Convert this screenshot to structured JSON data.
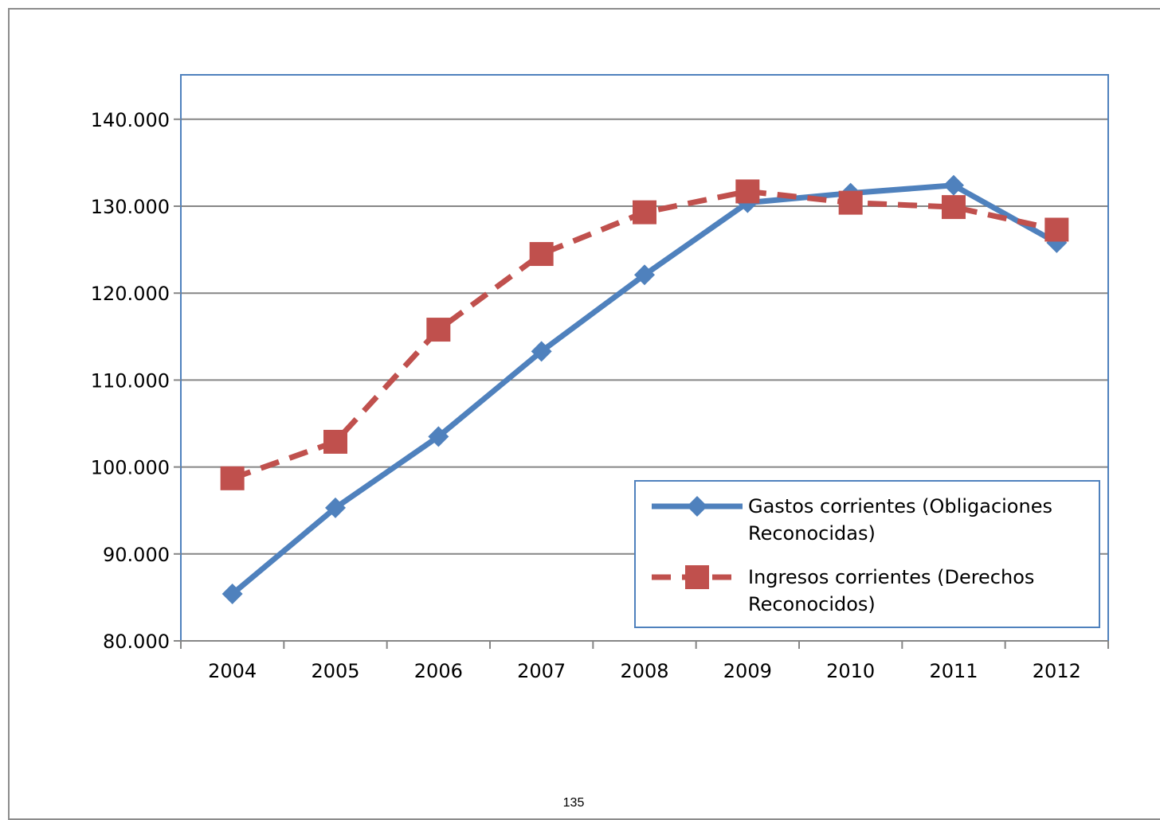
{
  "page": {
    "number": "135"
  },
  "chart_data": {
    "type": "line",
    "categories": [
      "2004",
      "2005",
      "2006",
      "2007",
      "2008",
      "2009",
      "2010",
      "2011",
      "2012"
    ],
    "ylim": [
      80000,
      140000
    ],
    "yticks": [
      80000,
      90000,
      100000,
      110000,
      120000,
      130000,
      140000
    ],
    "ytick_labels": [
      "80.000",
      "90.000",
      "100.000",
      "110.000",
      "120.000",
      "130.000",
      "140.000"
    ],
    "grid": true,
    "legend_position": "bottom-right",
    "series": [
      {
        "legend_lines": [
          "Gastos corrientes (Obligaciones",
          "Reconocidas)"
        ],
        "values": [
          85400,
          95300,
          103500,
          113300,
          122100,
          130400,
          131500,
          132400,
          125800
        ],
        "color": "#4F81BD",
        "line_style": "solid",
        "marker": "diamond"
      },
      {
        "legend_lines": [
          "Ingresos corrientes (Derechos",
          "Reconocidos)"
        ],
        "values": [
          98700,
          102900,
          115800,
          124500,
          129300,
          131700,
          130400,
          129900,
          127300
        ],
        "color": "#C0504D",
        "line_style": "dashed",
        "marker": "square"
      }
    ]
  }
}
